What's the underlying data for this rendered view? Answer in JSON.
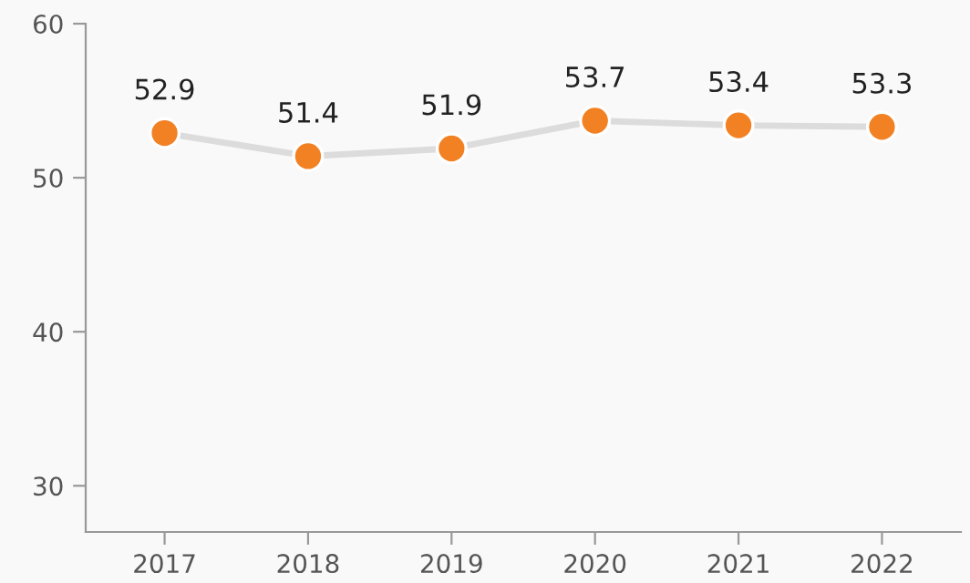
{
  "chart_data": {
    "type": "line",
    "categories": [
      "2017",
      "2018",
      "2019",
      "2020",
      "2021",
      "2022"
    ],
    "series": [
      {
        "color": "#f28124",
        "values": [
          52.9,
          51.4,
          51.9,
          53.7,
          53.4,
          53.3
        ]
      }
    ],
    "ylim": [
      27,
      60
    ],
    "yticks": [
      30,
      40,
      50,
      60
    ],
    "grid": false,
    "legend": false,
    "marker": "circle",
    "line_style": "solid",
    "data_labels": true
  }
}
